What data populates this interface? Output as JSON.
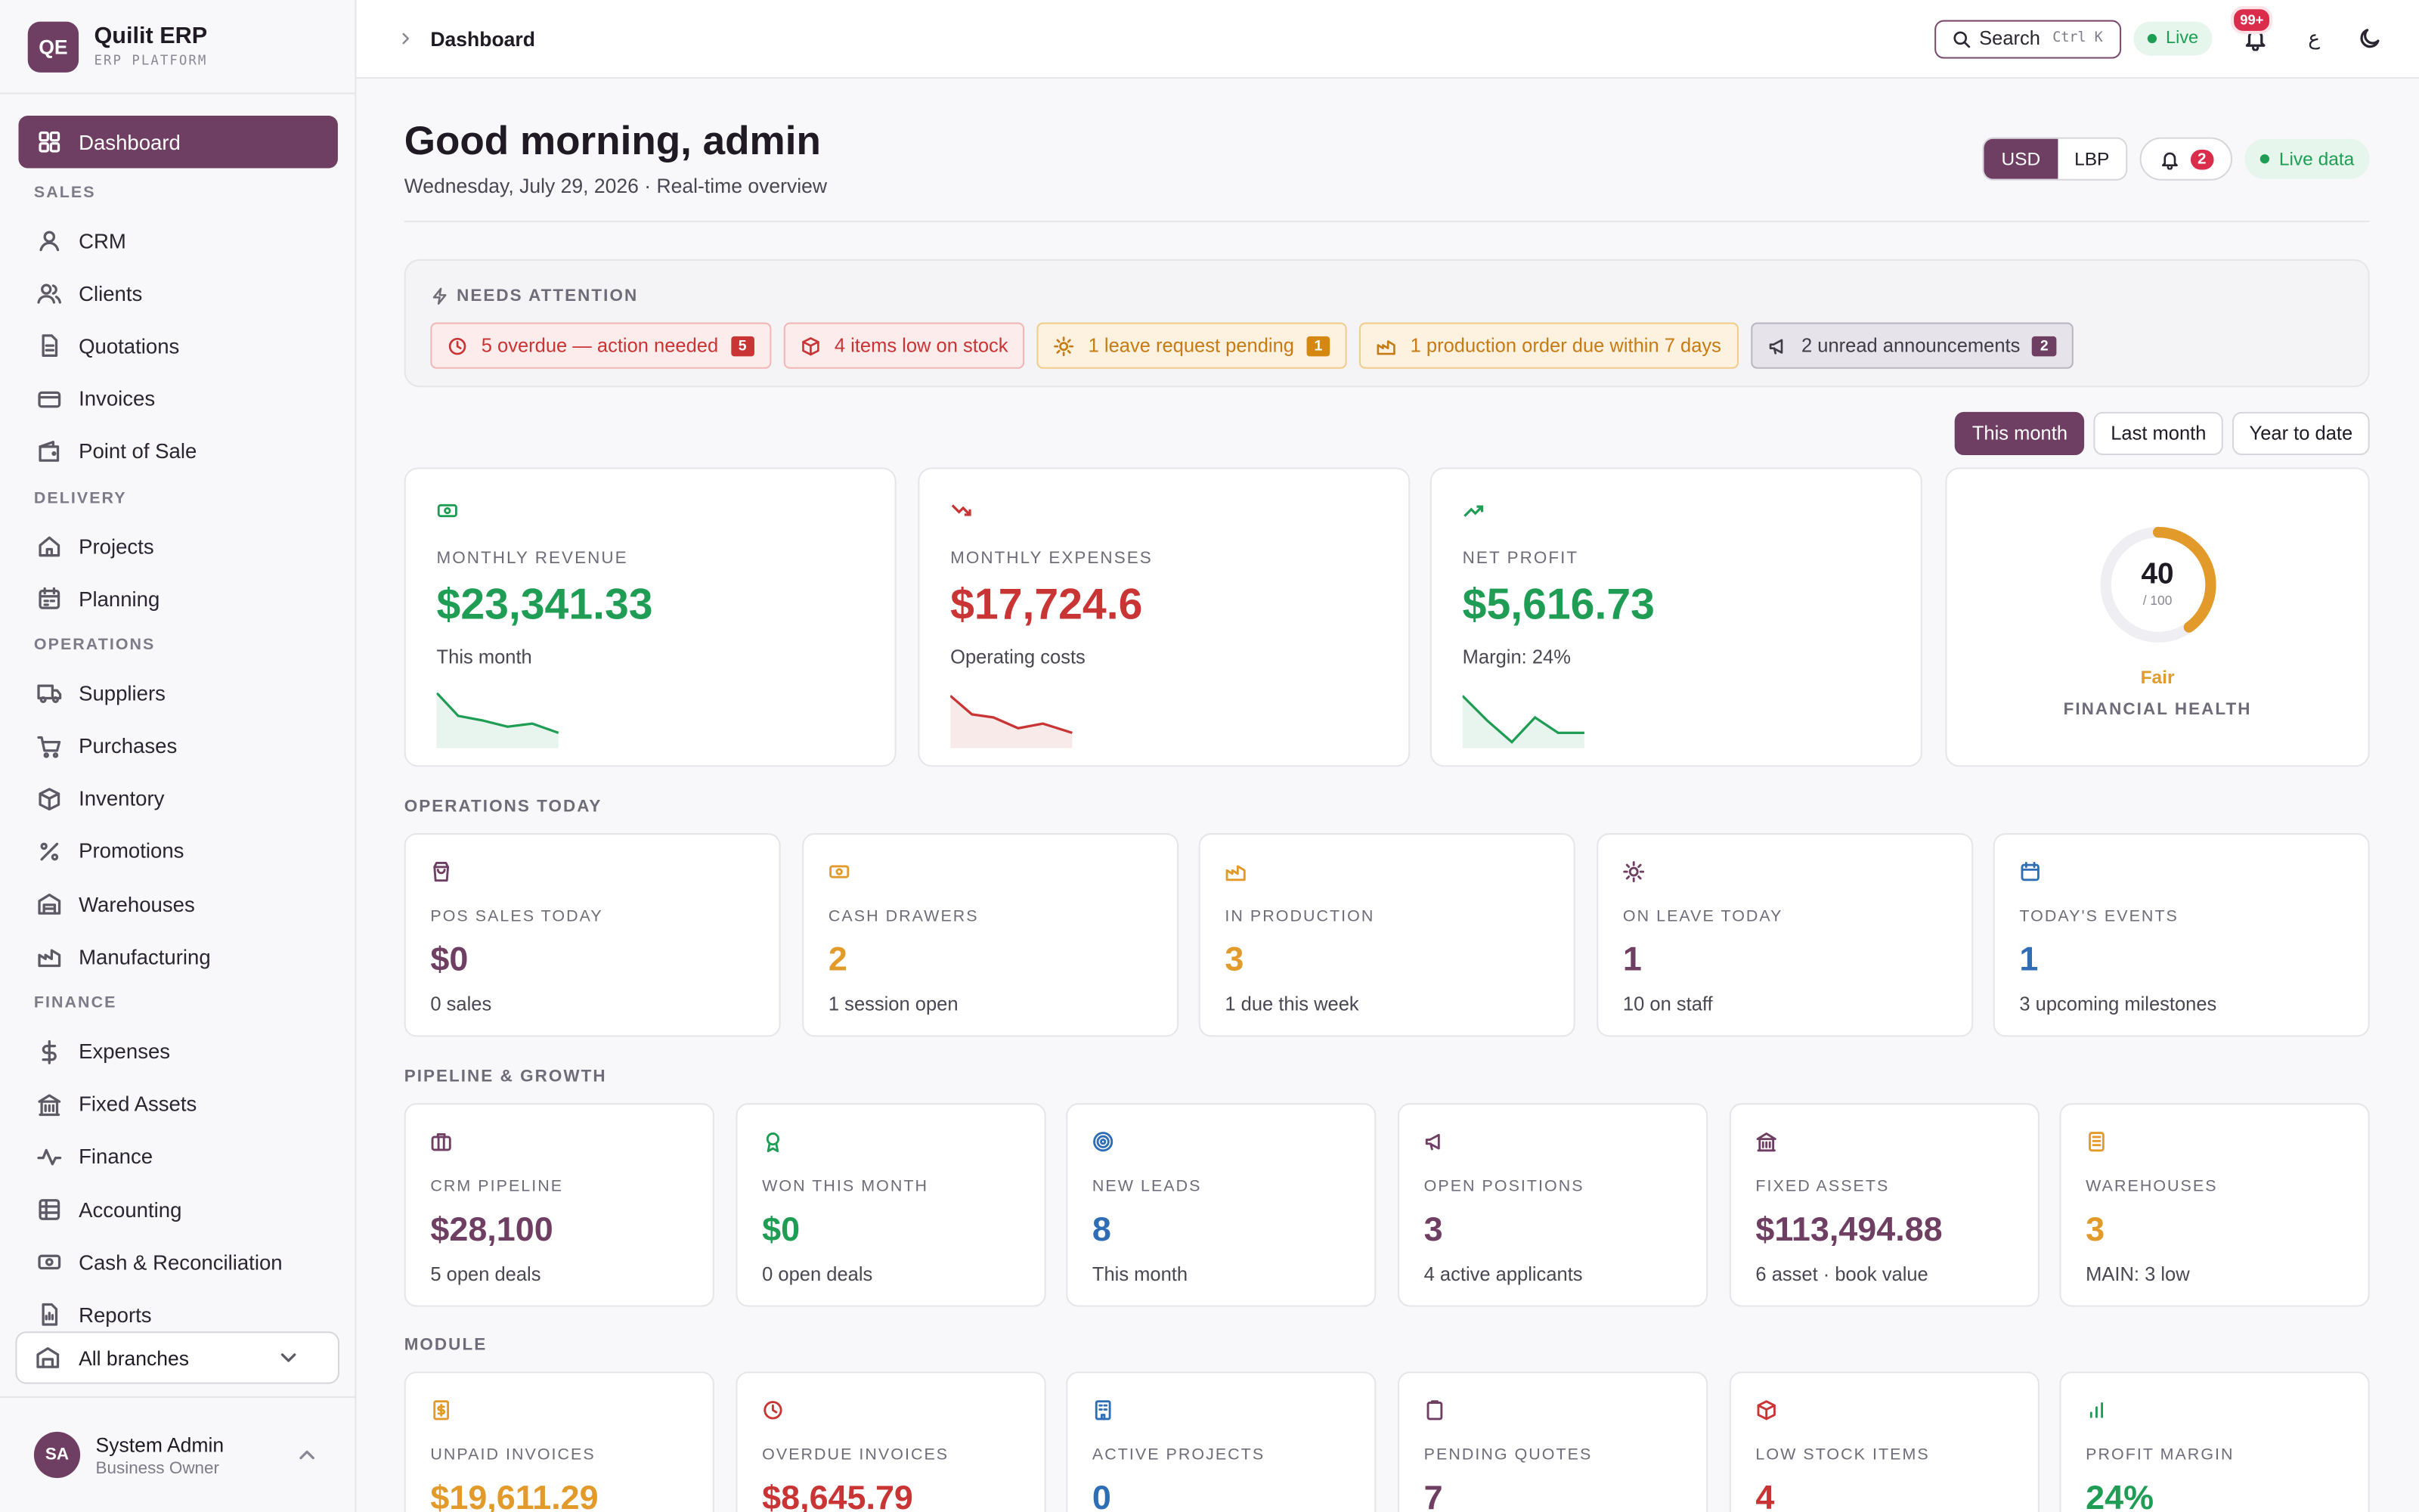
{
  "brand": {
    "initials": "QE",
    "name": "Quilit ERP",
    "subtitle": "ERP PLATFORM"
  },
  "nav": {
    "dashboard": "Dashboard",
    "sections": {
      "sales": "SALES",
      "delivery": "DELIVERY",
      "operations": "OPERATIONS",
      "finance": "FINANCE"
    },
    "items": {
      "crm": "CRM",
      "clients": "Clients",
      "quotations": "Quotations",
      "invoices": "Invoices",
      "pos": "Point of Sale",
      "projects": "Projects",
      "planning": "Planning",
      "suppliers": "Suppliers",
      "purchases": "Purchases",
      "inventory": "Inventory",
      "promotions": "Promotions",
      "warehouses": "Warehouses",
      "manufacturing": "Manufacturing",
      "expenses": "Expenses",
      "fixed_assets": "Fixed Assets",
      "finance": "Finance",
      "accounting": "Accounting",
      "cash": "Cash & Reconciliation",
      "reports": "Reports"
    }
  },
  "branch_select": "All branches",
  "user": {
    "initials": "SA",
    "name": "System Admin",
    "role": "Business Owner"
  },
  "topbar": {
    "breadcrumb": "Dashboard",
    "search_label": "Search",
    "search_shortcut": "Ctrl K",
    "live": "Live",
    "notif_badge": "99+",
    "lang": "ع"
  },
  "header": {
    "greeting": "Good morning, admin",
    "date": "Wednesday, July 29, 2026 · Real-time overview",
    "currency_usd": "USD",
    "currency_lbp": "LBP",
    "notif_count": "2",
    "live_data": "Live data"
  },
  "attention": {
    "title": "NEEDS ATTENTION",
    "chips": [
      {
        "text": "5 overdue — action needed",
        "count": "5"
      },
      {
        "text": "4 items low on stock"
      },
      {
        "text": "1 leave request pending",
        "count": "1"
      },
      {
        "text": "1 production order due within 7 days"
      },
      {
        "text": "2 unread announcements",
        "count": "2"
      }
    ]
  },
  "periods": {
    "this_month": "This month",
    "last_month": "Last month",
    "ytd": "Year to date"
  },
  "kpis": {
    "revenue": {
      "label": "MONTHLY REVENUE",
      "value": "$23,341.33",
      "sub": "This month"
    },
    "expenses": {
      "label": "MONTHLY EXPENSES",
      "value": "$17,724.6",
      "sub": "Operating costs"
    },
    "profit": {
      "label": "NET PROFIT",
      "value": "$5,616.73",
      "sub": "Margin: 24%"
    }
  },
  "health": {
    "score": "40",
    "denominator": "/ 100",
    "score_value": 40,
    "rating": "Fair",
    "label": "FINANCIAL HEALTH"
  },
  "sections": {
    "operations": "OPERATIONS TODAY",
    "pipeline": "PIPELINE & GROWTH",
    "module": "MODULE"
  },
  "operations": [
    {
      "label": "POS SALES TODAY",
      "value": "$0",
      "sub": "0 sales"
    },
    {
      "label": "CASH DRAWERS",
      "value": "2",
      "sub": "1 session open"
    },
    {
      "label": "IN PRODUCTION",
      "value": "3",
      "sub": "1 due this week"
    },
    {
      "label": "ON LEAVE TODAY",
      "value": "1",
      "sub": "10 on staff"
    },
    {
      "label": "TODAY'S EVENTS",
      "value": "1",
      "sub": "3 upcoming milestones"
    }
  ],
  "pipeline": [
    {
      "label": "CRM PIPELINE",
      "value": "$28,100",
      "sub": "5 open deals"
    },
    {
      "label": "WON THIS MONTH",
      "value": "$0",
      "sub": "0 open deals"
    },
    {
      "label": "NEW LEADS",
      "value": "8",
      "sub": "This month"
    },
    {
      "label": "OPEN POSITIONS",
      "value": "3",
      "sub": "4 active applicants"
    },
    {
      "label": "FIXED ASSETS",
      "value": "$113,494.88",
      "sub": "6 asset · book value"
    },
    {
      "label": "WAREHOUSES",
      "value": "3",
      "sub": "MAIN: 3 low"
    }
  ],
  "module": [
    {
      "label": "UNPAID INVOICES",
      "value": "$19,611.29"
    },
    {
      "label": "OVERDUE INVOICES",
      "value": "$8,645.79"
    },
    {
      "label": "ACTIVE PROJECTS",
      "value": "0"
    },
    {
      "label": "PENDING QUOTES",
      "value": "7"
    },
    {
      "label": "LOW STOCK ITEMS",
      "value": "4"
    },
    {
      "label": "PROFIT MARGIN",
      "value": "24%"
    }
  ],
  "colors": {
    "accent": "#6e3f62",
    "green": "#1f9d55",
    "red": "#c93434",
    "amber": "#e29a2a",
    "blue": "#2f6db5"
  }
}
